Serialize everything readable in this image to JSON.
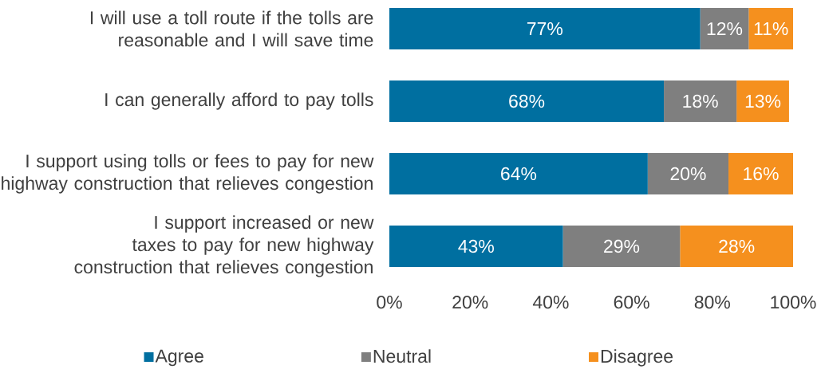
{
  "chart_data": {
    "type": "bar",
    "orientation": "horizontal",
    "stacked": true,
    "categories": [
      "I will use a toll route if the tolls are reasonable and I will save time",
      "I can generally afford to pay tolls",
      "I support using tolls or fees to pay for new highway construction that relieves congestion",
      "I support increased or new taxes to pay for new highway construction that relieves congestion"
    ],
    "series": [
      {
        "name": "Agree",
        "color": "#006fa0",
        "values": [
          77,
          68,
          64,
          43
        ],
        "value_labels": [
          "77%",
          "68%",
          "64%",
          "43%"
        ]
      },
      {
        "name": "Neutral",
        "color": "#7f7f7f",
        "values": [
          12,
          18,
          20,
          29
        ],
        "value_labels": [
          "12%",
          "18%",
          "20%",
          "29%"
        ]
      },
      {
        "name": "Disagree",
        "color": "#f5901e",
        "values": [
          11,
          13,
          16,
          28
        ],
        "value_labels": [
          "11%",
          "13%",
          "16%",
          "28%"
        ]
      }
    ],
    "xlim": [
      0,
      100
    ],
    "xticks": [
      {
        "value": 0,
        "label": "0%"
      },
      {
        "value": 20,
        "label": "20%"
      },
      {
        "value": 40,
        "label": "40%"
      },
      {
        "value": 60,
        "label": "60%"
      },
      {
        "value": 80,
        "label": "80%"
      },
      {
        "value": 100,
        "label": "100%"
      }
    ],
    "grid": false,
    "legend": "bottom"
  }
}
